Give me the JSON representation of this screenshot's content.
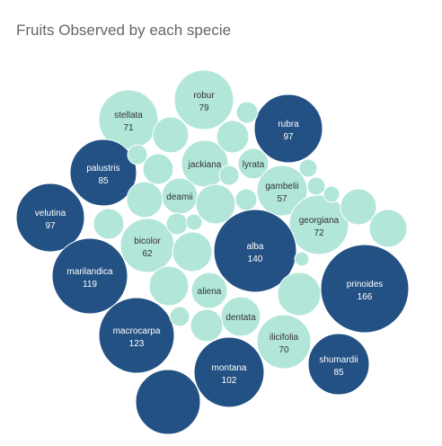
{
  "chart_data": {
    "type": "bubble",
    "title": "Fruits Observed by each specie",
    "colors": {
      "high": "#235184",
      "low": "#b1e6d9"
    },
    "bubbles": [
      {
        "label": "robur",
        "value": 79
      },
      {
        "label": "stellata",
        "value": 71
      },
      {
        "label": "rubra",
        "value": 97
      },
      {
        "label": "jackiana",
        "value": null
      },
      {
        "label": "lyrata",
        "value": null
      },
      {
        "label": "palustris",
        "value": 85
      },
      {
        "label": "gambelii",
        "value": 57
      },
      {
        "label": "deamii",
        "value": null
      },
      {
        "label": "velutina",
        "value": 97
      },
      {
        "label": "georgiana",
        "value": 72
      },
      {
        "label": "bicolor",
        "value": 62
      },
      {
        "label": "alba",
        "value": 140
      },
      {
        "label": "marilandica",
        "value": 119
      },
      {
        "label": "prinoides",
        "value": 166
      },
      {
        "label": "aliena",
        "value": null
      },
      {
        "label": "dentata",
        "value": null
      },
      {
        "label": "macrocarpa",
        "value": 123
      },
      {
        "label": "ilicifolia",
        "value": 70
      },
      {
        "label": "shumardii",
        "value": 85
      },
      {
        "label": "montana",
        "value": 102
      },
      {
        "label": null,
        "value": null,
        "dark": true
      },
      {
        "label": null,
        "value": null,
        "dark": false
      },
      {
        "label": null,
        "value": null,
        "dark": false
      },
      {
        "label": null,
        "value": null,
        "dark": false
      },
      {
        "label": null,
        "value": null,
        "dark": false
      },
      {
        "label": null,
        "value": null,
        "dark": false
      },
      {
        "label": null,
        "value": null,
        "dark": false
      },
      {
        "label": null,
        "value": null,
        "dark": false
      },
      {
        "label": null,
        "value": null,
        "dark": false
      },
      {
        "label": null,
        "value": null,
        "dark": false
      },
      {
        "label": null,
        "value": null,
        "dark": false
      },
      {
        "label": null,
        "value": null,
        "dark": false
      },
      {
        "label": null,
        "value": null,
        "dark": false
      },
      {
        "label": null,
        "value": null,
        "dark": false
      },
      {
        "label": null,
        "value": null,
        "dark": false
      },
      {
        "label": null,
        "value": null,
        "dark": false
      },
      {
        "label": null,
        "value": null,
        "dark": false
      },
      {
        "label": null,
        "value": null,
        "dark": false
      },
      {
        "label": null,
        "value": null,
        "dark": false
      },
      {
        "label": null,
        "value": null,
        "dark": false
      },
      {
        "label": null,
        "value": null,
        "dark": false
      },
      {
        "label": null,
        "value": null,
        "dark": false
      },
      {
        "label": null,
        "value": null,
        "dark": false
      },
      {
        "label": null,
        "value": null,
        "dark": false
      },
      {
        "label": null,
        "value": null,
        "dark": false
      },
      {
        "label": null,
        "value": null,
        "dark": false
      },
      {
        "label": null,
        "value": null,
        "dark": false
      }
    ]
  }
}
